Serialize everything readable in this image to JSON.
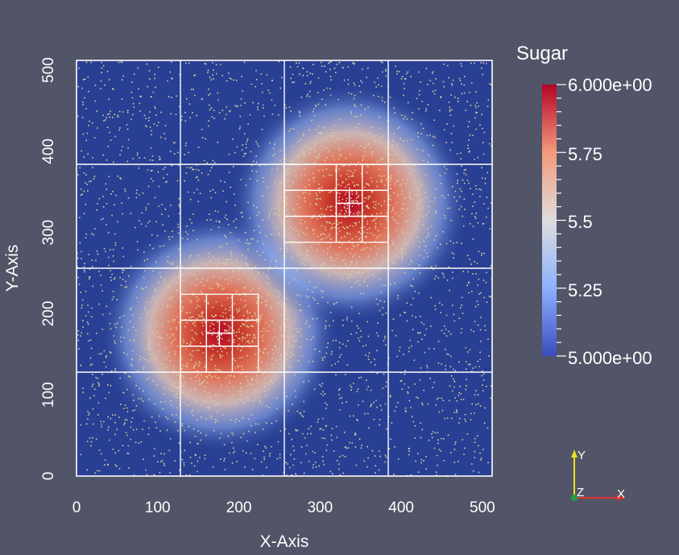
{
  "plot": {
    "x_axis_title": "X-Axis",
    "y_axis_title": "Y-Axis",
    "x_ticks": [
      "0",
      "100",
      "200",
      "300",
      "400",
      "500"
    ],
    "y_ticks": [
      "0",
      "100",
      "200",
      "300",
      "400",
      "500"
    ],
    "domain": [
      0,
      512
    ],
    "background_color": "#283f94",
    "grid_line_color": "#ffffff",
    "particle_color": "#d8cf9e",
    "coarse_grid": [
      0,
      128,
      256,
      384,
      512
    ],
    "refined_blocks": [
      {
        "x": [
          128,
          224
        ],
        "y": [
          128,
          224
        ],
        "lines": [
          160,
          192
        ]
      },
      {
        "x": [
          160,
          192
        ],
        "y": [
          160,
          192
        ],
        "lines": [
          176
        ]
      },
      {
        "x": [
          256,
          384
        ],
        "y": [
          288,
          384
        ],
        "lines": [
          320,
          352
        ]
      },
      {
        "x": [
          320,
          352
        ],
        "y": [
          320,
          352
        ],
        "lines": [
          336
        ]
      }
    ],
    "hotspots": [
      {
        "x": 176,
        "y": 176
      },
      {
        "x": 336,
        "y": 336
      }
    ]
  },
  "colorbar": {
    "title": "Sugar",
    "max_label": "6.000e+00",
    "min_label": "5.000e+00",
    "labels": [
      "5.75",
      "5.5",
      "5.25"
    ],
    "range": [
      5.0,
      6.0
    ],
    "colors": [
      "#3b4cc0",
      "#8db0fe",
      "#dddddd",
      "#f49a7b",
      "#b40426"
    ]
  },
  "orientation_axes": {
    "y_label": "Y",
    "z_label": "Z",
    "x_label": "X",
    "x_color": "#e03030",
    "y_color": "#e8e020",
    "z_color": "#20a040"
  }
}
